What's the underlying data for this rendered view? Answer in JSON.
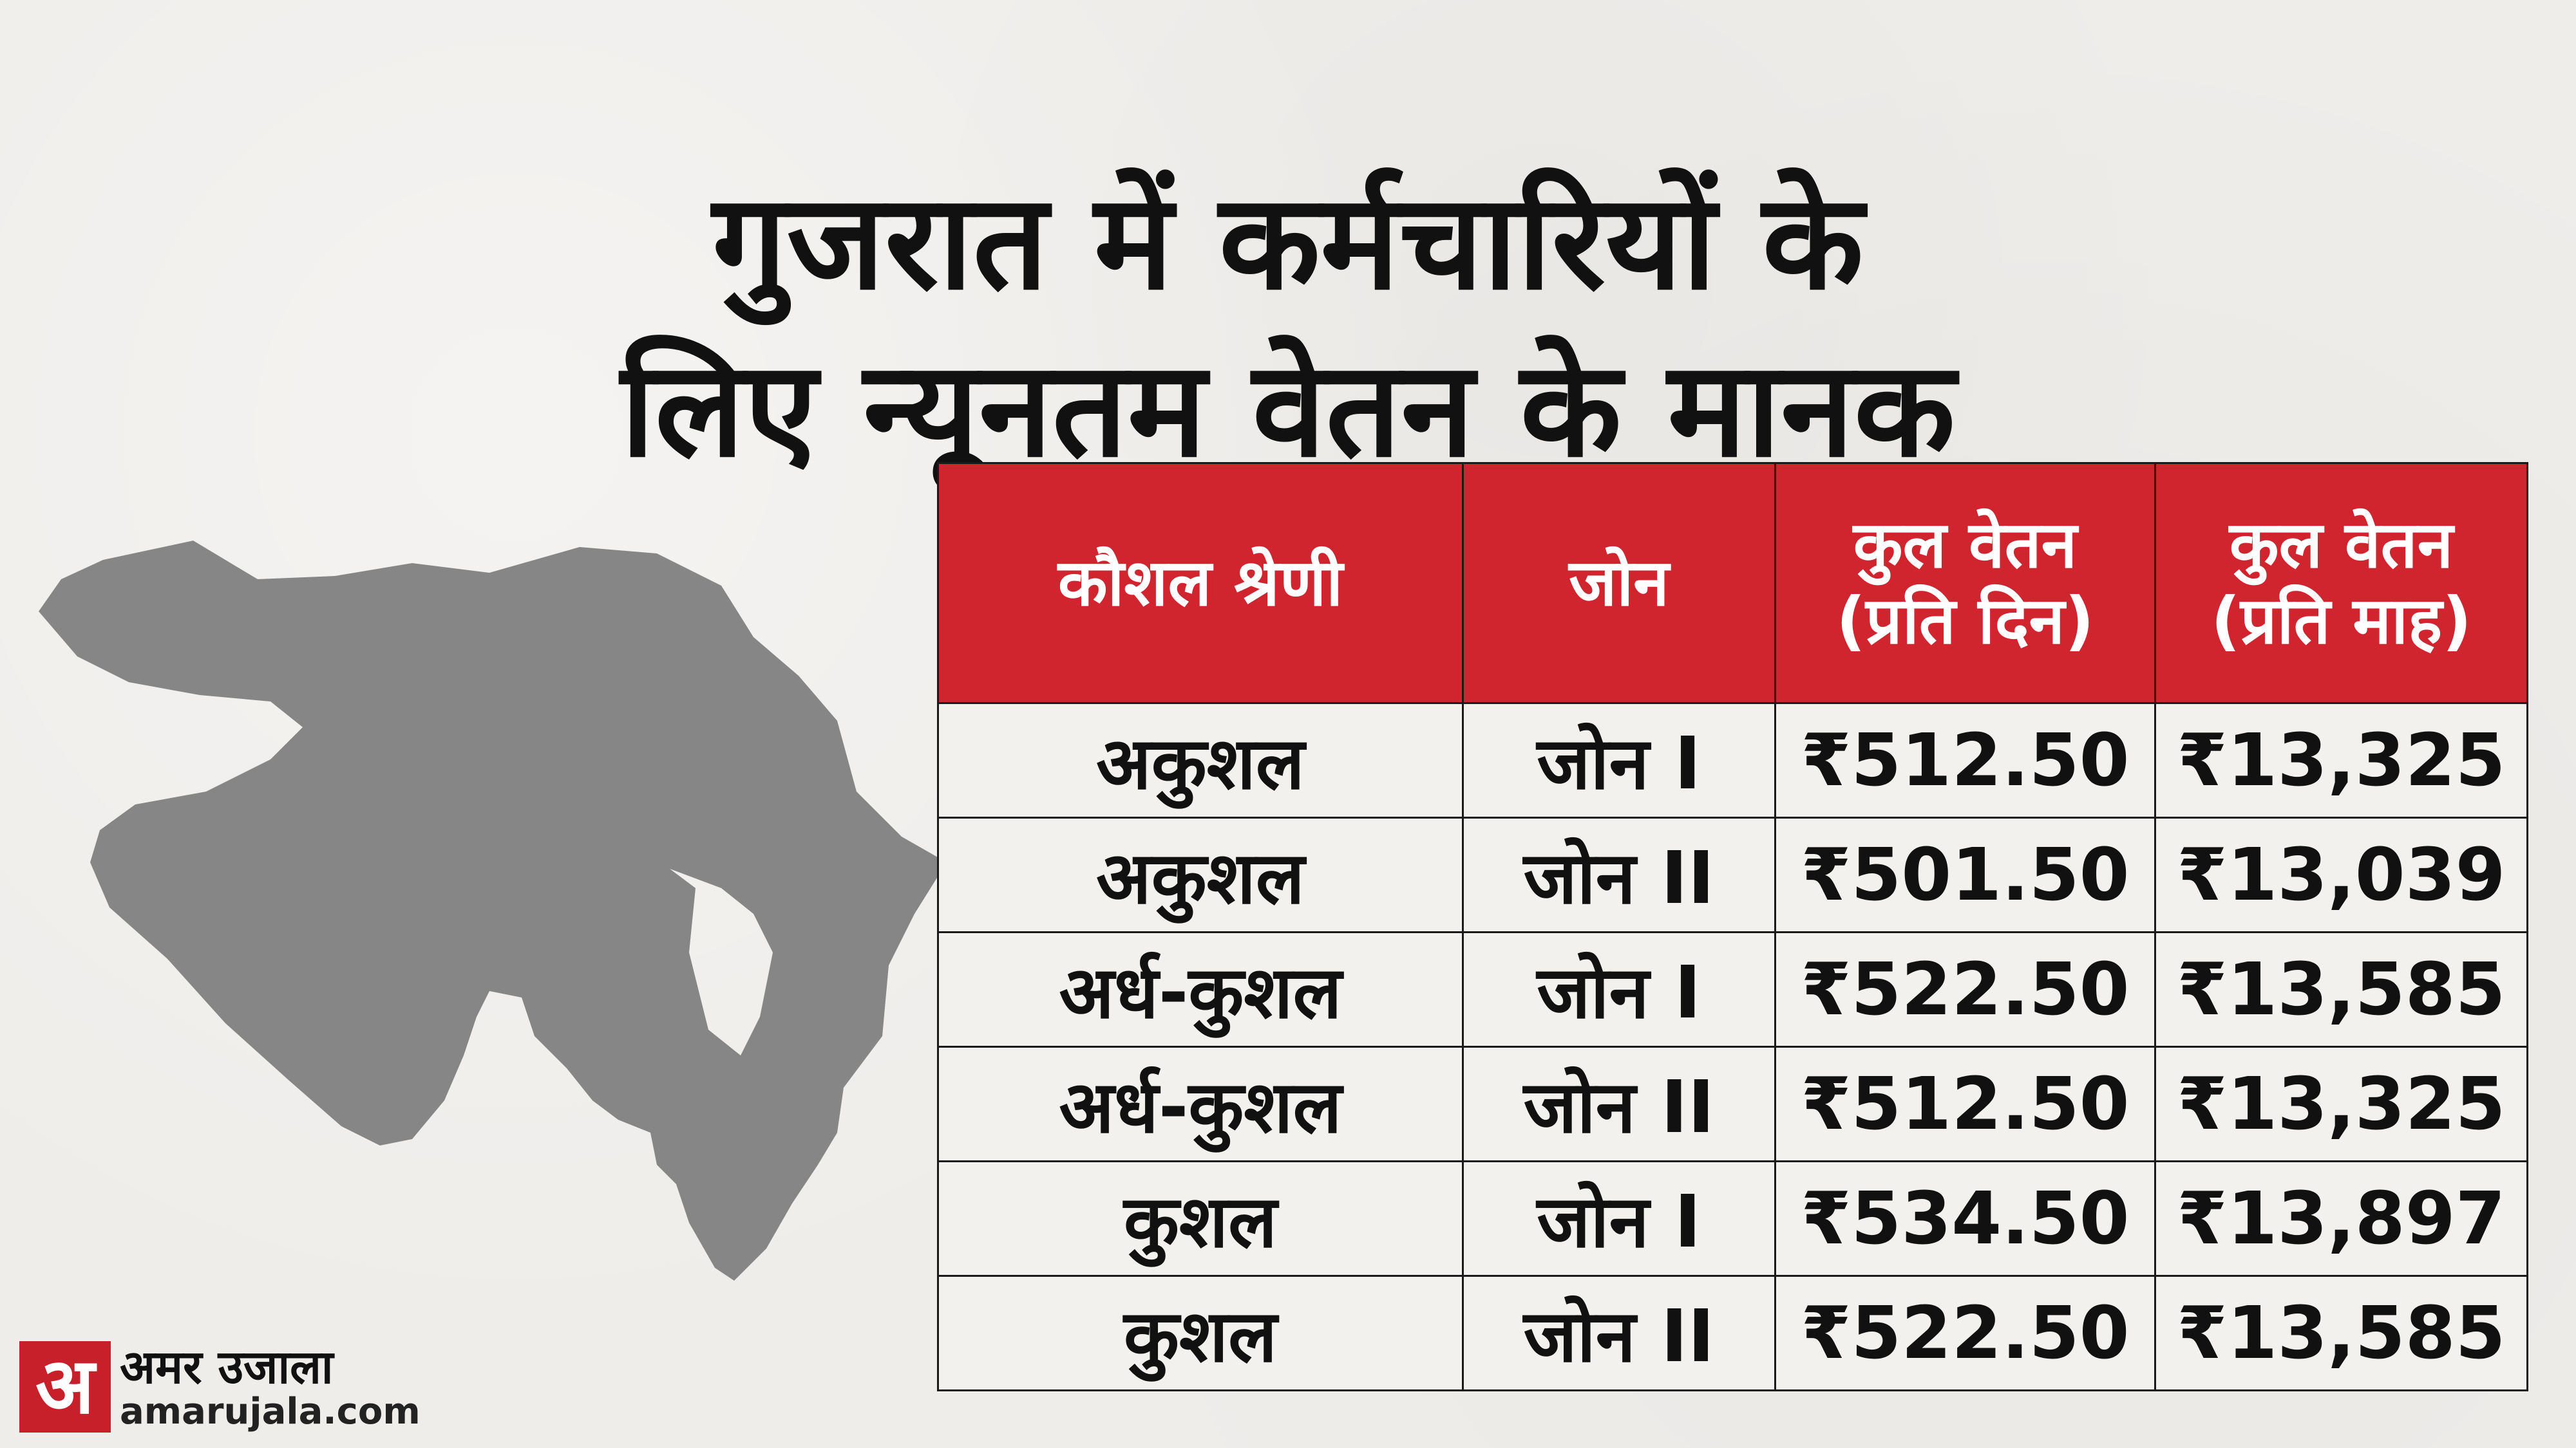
{
  "headline": {
    "line1": "गुजरात में कर्मचारियों के",
    "line2": "लिए न्यूनतम वेतन के मानक"
  },
  "map": {
    "icon": "gujarat-map-icon",
    "fill_color": "#868686"
  },
  "table": {
    "header_color": "#d0242f",
    "headers": [
      {
        "line1": "कौशल श्रेणी",
        "line2": ""
      },
      {
        "line1": "जोन",
        "line2": ""
      },
      {
        "line1": "कुल वेतन",
        "line2": "(प्रति दिन)"
      },
      {
        "line1": "कुल वेतन",
        "line2": "(प्रति माह)"
      }
    ],
    "rows": [
      [
        "अकुशल",
        "जोन I",
        "₹512.50",
        "₹13,325"
      ],
      [
        "अकुशल",
        "जोन II",
        "₹501.50",
        "₹13,039"
      ],
      [
        "अर्ध-कुशल",
        "जोन I",
        "₹522.50",
        "₹13,585"
      ],
      [
        "अर्ध-कुशल",
        "जोन II",
        "₹512.50",
        "₹13,325"
      ],
      [
        "कुशल",
        "जोन I",
        "₹534.50",
        "₹13,897"
      ],
      [
        "कुशल",
        "जोन II",
        "₹522.50",
        "₹13,585"
      ]
    ]
  },
  "brand": {
    "mark": "अ",
    "name_hindi": "अमर उजाला",
    "url": "amarujala.com",
    "color": "#c8202a"
  }
}
